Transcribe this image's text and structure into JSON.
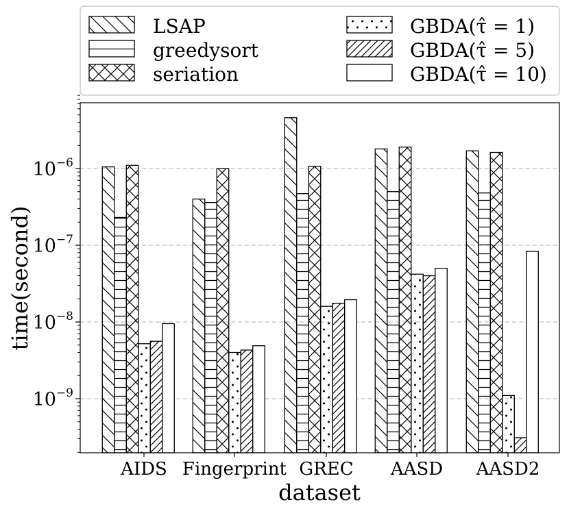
{
  "chart_data": {
    "type": "bar",
    "xlabel": "dataset",
    "ylabel": "time(second)",
    "yscale": "log",
    "ylim": [
      2e-10,
      9e-06
    ],
    "grid": "y-major-dashed",
    "legend_position": "top",
    "categories": [
      "AIDS",
      "Fingerprint",
      "GREC",
      "AASD",
      "AASD2"
    ],
    "yticks": [
      {
        "value": 1e-09,
        "base": "10",
        "exp": "−9"
      },
      {
        "value": 1e-08,
        "base": "10",
        "exp": "−8"
      },
      {
        "value": 1e-07,
        "base": "10",
        "exp": "−7"
      },
      {
        "value": 1e-06,
        "base": "10",
        "exp": "−6"
      }
    ],
    "series": [
      {
        "name": "LSAP",
        "hatch": "backslash",
        "values": [
          1.05e-06,
          4e-07,
          4.6e-06,
          1.8e-06,
          1.7e-06
        ]
      },
      {
        "name": "greedysort",
        "hatch": "horizontal",
        "values": [
          2.3e-07,
          3.6e-07,
          4.7e-07,
          5e-07,
          4.8e-07
        ]
      },
      {
        "name": "seriation",
        "hatch": "cross",
        "values": [
          1.1e-06,
          1e-06,
          1.07e-06,
          1.9e-06,
          1.62e-06
        ]
      },
      {
        "name": "GBDA(τ̂ = 1)",
        "hatch": "dots",
        "values": [
          5.2e-09,
          4e-09,
          1.6e-08,
          4.2e-08,
          1.1e-09
        ]
      },
      {
        "name": "GBDA(τ̂ = 5)",
        "hatch": "slash",
        "values": [
          5.6e-09,
          4.3e-09,
          1.75e-08,
          4e-08,
          3.1e-10
        ]
      },
      {
        "name": "GBDA(τ̂ = 10)",
        "hatch": "none",
        "values": [
          9.5e-09,
          4.9e-09,
          1.95e-08,
          5e-08,
          8.3e-08
        ]
      }
    ]
  }
}
